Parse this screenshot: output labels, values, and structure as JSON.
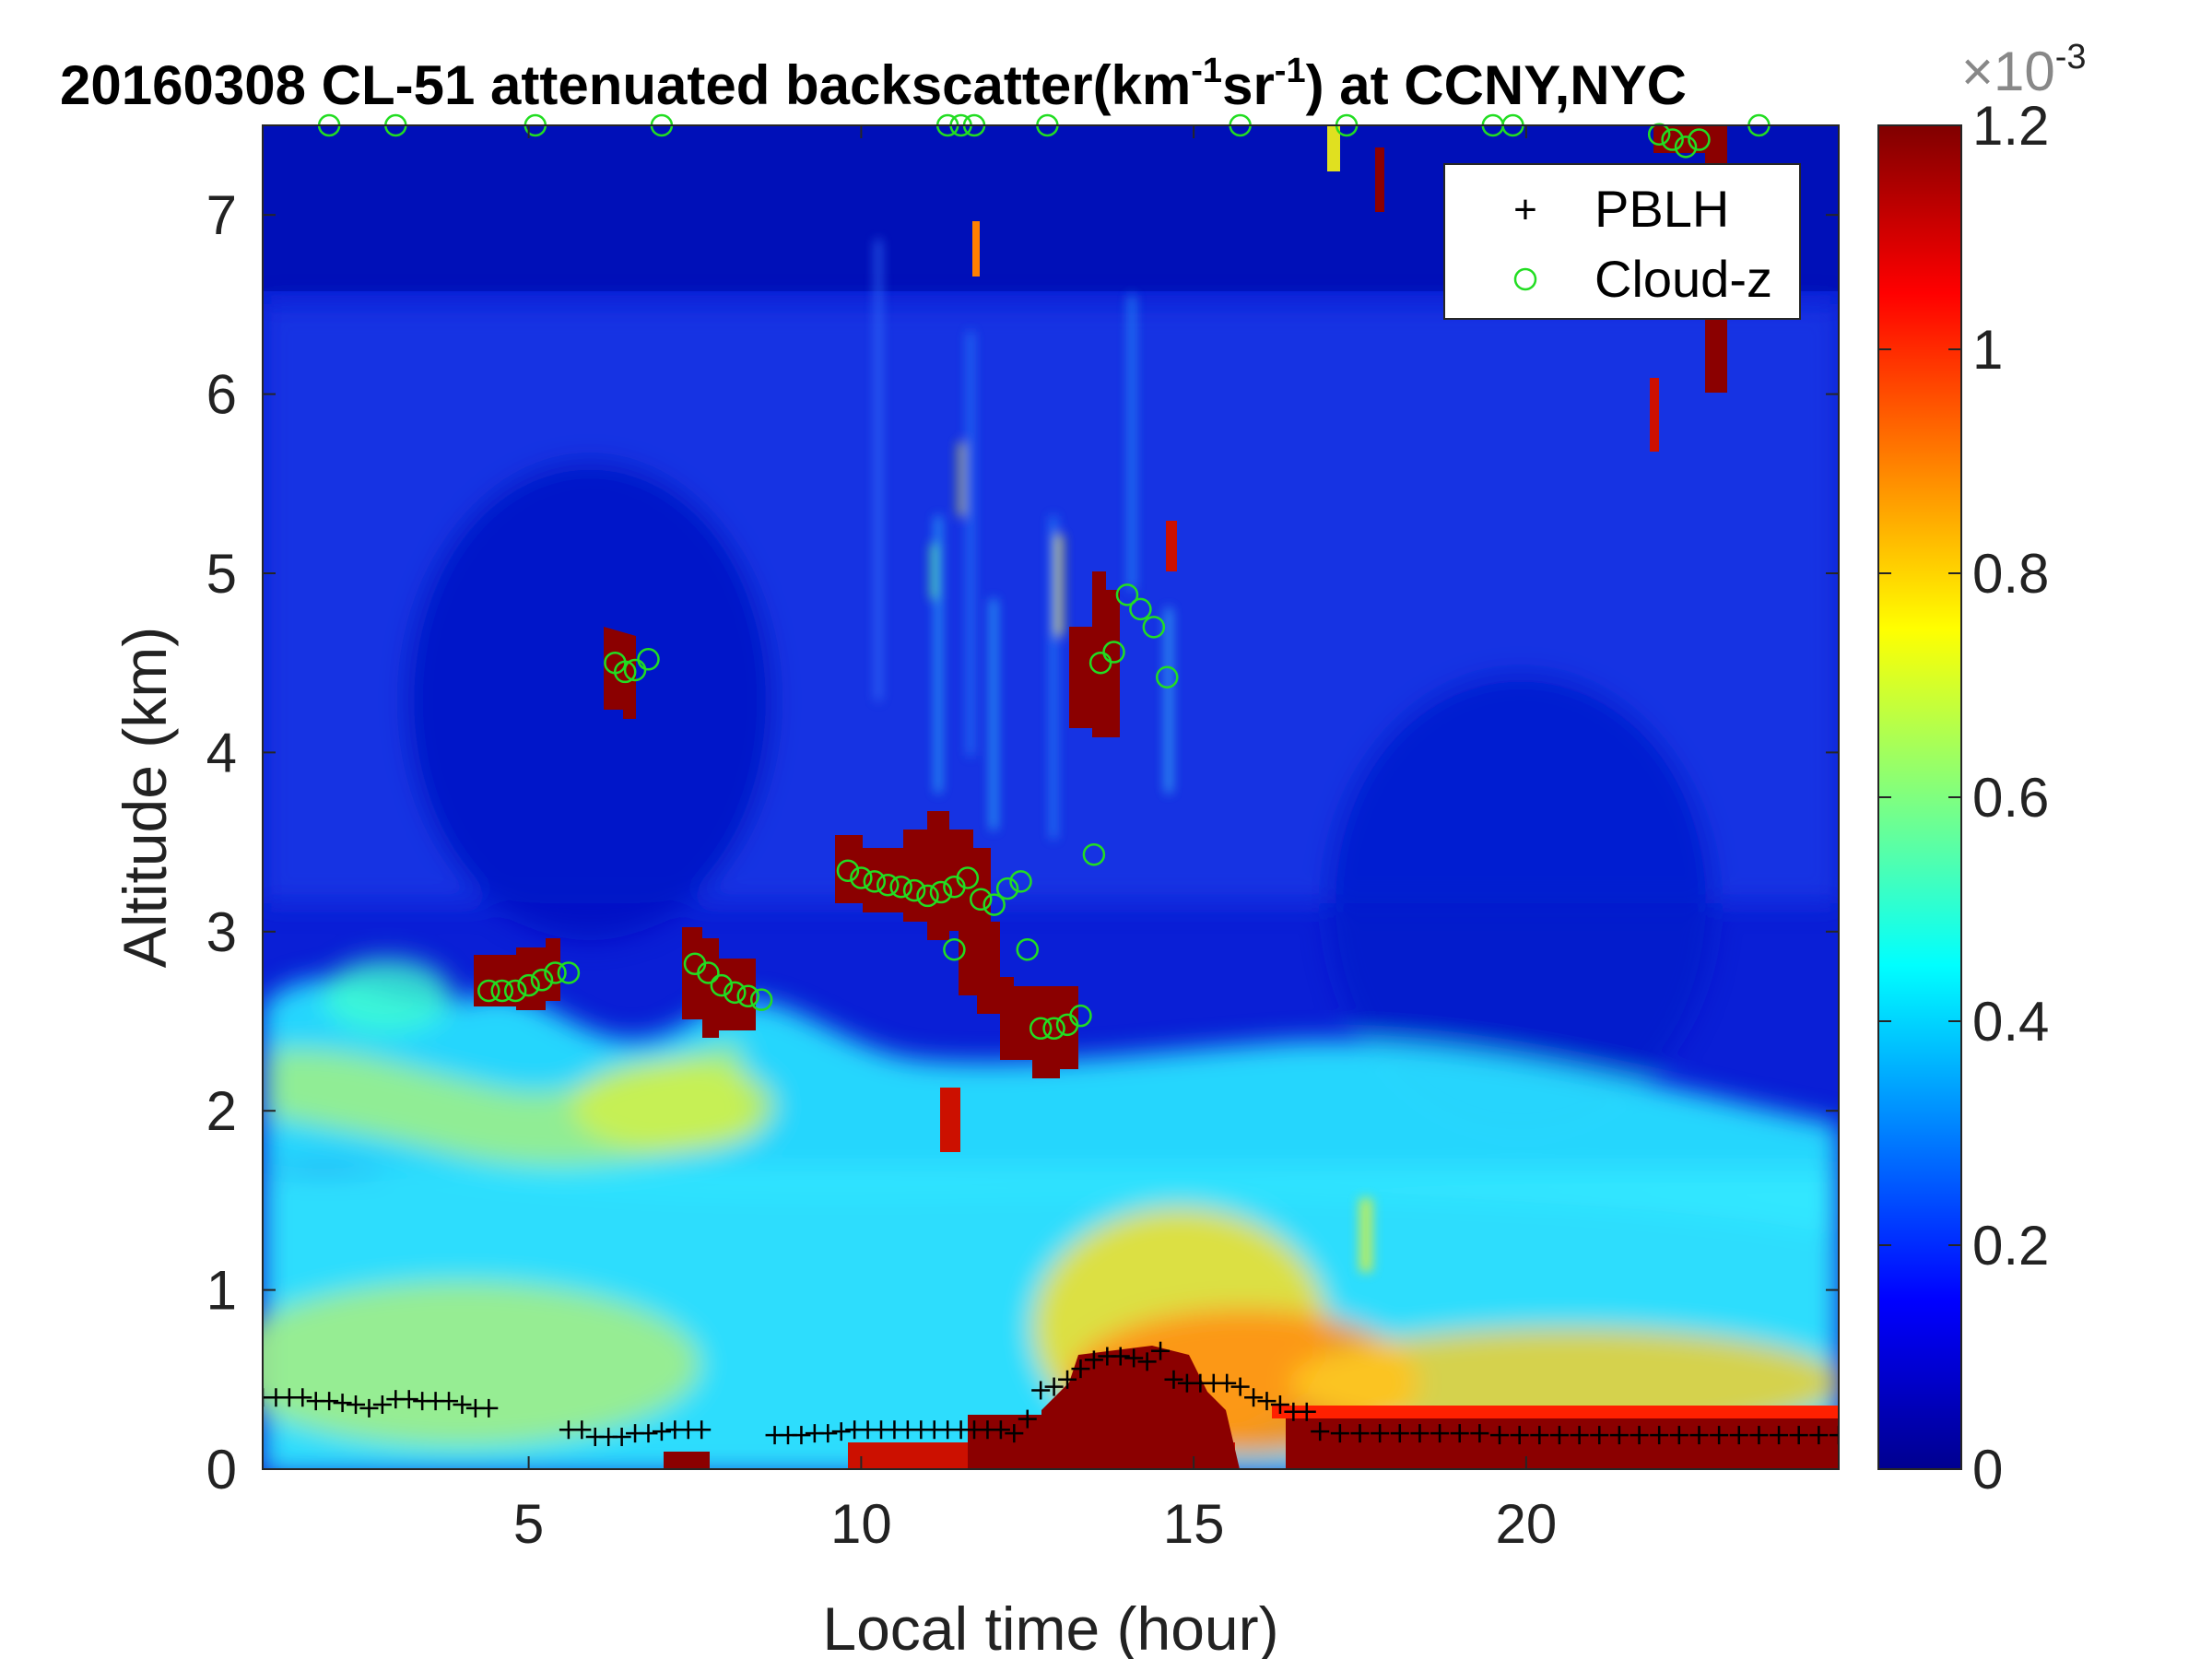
{
  "chart_data": {
    "type": "heatmap",
    "title_main": "20160308  CL-51 attenuated backscatter(km",
    "title_exp1": "-1",
    "title_mid": "sr",
    "title_exp2": "-1",
    "title_end": ") at CCNY,NYC",
    "xlabel": "Local time (hour)",
    "ylabel": "Altitude (km)",
    "xlim": [
      1,
      24.7
    ],
    "ylim": [
      0,
      7.5
    ],
    "x_ticks": [
      5,
      10,
      15,
      20
    ],
    "x_tick_labels": [
      "5",
      "10",
      "15",
      "20"
    ],
    "y_ticks": [
      0,
      1,
      2,
      3,
      4,
      5,
      6,
      7
    ],
    "y_tick_labels": [
      "0",
      "1",
      "2",
      "3",
      "4",
      "5",
      "6",
      "7"
    ],
    "colorbar": {
      "colormap": "jet",
      "range": [
        0,
        0.0012
      ],
      "ticks": [
        0,
        0.2,
        0.4,
        0.6,
        0.8,
        1,
        1.2
      ],
      "tick_labels": [
        "0",
        "0.2",
        "0.4",
        "0.6",
        "0.8",
        "1",
        "1.2"
      ],
      "multiplier_base": "×10",
      "multiplier_exp": "-3"
    },
    "legend": {
      "placement": "top-right",
      "entries": [
        {
          "marker": "+",
          "label": "PBLH",
          "color": "#000000"
        },
        {
          "marker": "o",
          "label": "Cloud-z",
          "color": "#22dd22"
        }
      ]
    },
    "series": [
      {
        "name": "PBLH",
        "marker": "+",
        "color": "#000000",
        "points": [
          [
            1.0,
            0.4
          ],
          [
            1.2,
            0.4
          ],
          [
            1.4,
            0.4
          ],
          [
            1.6,
            0.4
          ],
          [
            1.8,
            0.38
          ],
          [
            2.0,
            0.38
          ],
          [
            2.2,
            0.37
          ],
          [
            2.4,
            0.36
          ],
          [
            2.6,
            0.34
          ],
          [
            2.8,
            0.36
          ],
          [
            3.0,
            0.39
          ],
          [
            3.2,
            0.39
          ],
          [
            3.4,
            0.38
          ],
          [
            3.6,
            0.38
          ],
          [
            3.8,
            0.38
          ],
          [
            4.0,
            0.36
          ],
          [
            4.2,
            0.34
          ],
          [
            4.4,
            0.34
          ],
          [
            5.6,
            0.22
          ],
          [
            5.8,
            0.22
          ],
          [
            6.0,
            0.18
          ],
          [
            6.2,
            0.18
          ],
          [
            6.4,
            0.18
          ],
          [
            6.6,
            0.2
          ],
          [
            6.8,
            0.2
          ],
          [
            7.0,
            0.21
          ],
          [
            7.2,
            0.22
          ],
          [
            7.4,
            0.22
          ],
          [
            7.6,
            0.22
          ],
          [
            8.7,
            0.19
          ],
          [
            8.9,
            0.19
          ],
          [
            9.1,
            0.19
          ],
          [
            9.3,
            0.2
          ],
          [
            9.5,
            0.2
          ],
          [
            9.7,
            0.21
          ],
          [
            9.9,
            0.22
          ],
          [
            10.1,
            0.22
          ],
          [
            10.3,
            0.22
          ],
          [
            10.5,
            0.22
          ],
          [
            10.7,
            0.22
          ],
          [
            10.9,
            0.22
          ],
          [
            11.1,
            0.22
          ],
          [
            11.3,
            0.22
          ],
          [
            11.5,
            0.22
          ],
          [
            11.7,
            0.22
          ],
          [
            11.9,
            0.22
          ],
          [
            12.1,
            0.22
          ],
          [
            12.3,
            0.2
          ],
          [
            12.5,
            0.28
          ],
          [
            12.7,
            0.44
          ],
          [
            12.9,
            0.46
          ],
          [
            13.1,
            0.5
          ],
          [
            13.3,
            0.56
          ],
          [
            13.5,
            0.61
          ],
          [
            13.7,
            0.63
          ],
          [
            13.9,
            0.63
          ],
          [
            14.1,
            0.62
          ],
          [
            14.3,
            0.6
          ],
          [
            14.5,
            0.66
          ],
          [
            14.7,
            0.5
          ],
          [
            14.9,
            0.48
          ],
          [
            15.1,
            0.48
          ],
          [
            15.3,
            0.48
          ],
          [
            15.5,
            0.48
          ],
          [
            15.7,
            0.46
          ],
          [
            15.9,
            0.4
          ],
          [
            16.1,
            0.38
          ],
          [
            16.3,
            0.36
          ],
          [
            16.5,
            0.32
          ],
          [
            16.7,
            0.32
          ],
          [
            16.9,
            0.21
          ],
          [
            17.2,
            0.2
          ],
          [
            17.5,
            0.2
          ],
          [
            17.8,
            0.2
          ],
          [
            18.1,
            0.2
          ],
          [
            18.4,
            0.2
          ],
          [
            18.7,
            0.2
          ],
          [
            19.0,
            0.2
          ],
          [
            19.3,
            0.2
          ],
          [
            19.6,
            0.19
          ],
          [
            19.9,
            0.19
          ],
          [
            20.2,
            0.19
          ],
          [
            20.5,
            0.19
          ],
          [
            20.8,
            0.19
          ],
          [
            21.1,
            0.19
          ],
          [
            21.4,
            0.19
          ],
          [
            21.7,
            0.19
          ],
          [
            22.0,
            0.19
          ],
          [
            22.3,
            0.19
          ],
          [
            22.6,
            0.19
          ],
          [
            22.9,
            0.19
          ],
          [
            23.2,
            0.19
          ],
          [
            23.5,
            0.19
          ],
          [
            23.8,
            0.19
          ],
          [
            24.1,
            0.19
          ],
          [
            24.4,
            0.19
          ],
          [
            24.7,
            0.19
          ]
        ]
      },
      {
        "name": "Cloud-z",
        "marker": "o",
        "color": "#22dd22",
        "points": [
          [
            4.4,
            2.67
          ],
          [
            4.6,
            2.67
          ],
          [
            4.8,
            2.67
          ],
          [
            5.0,
            2.7
          ],
          [
            5.2,
            2.73
          ],
          [
            5.4,
            2.77
          ],
          [
            5.6,
            2.77
          ],
          [
            6.3,
            4.5
          ],
          [
            6.45,
            4.45
          ],
          [
            6.6,
            4.46
          ],
          [
            6.8,
            4.52
          ],
          [
            7.5,
            2.82
          ],
          [
            7.7,
            2.77
          ],
          [
            7.9,
            2.7
          ],
          [
            8.1,
            2.66
          ],
          [
            8.3,
            2.64
          ],
          [
            8.5,
            2.62
          ],
          [
            9.8,
            3.34
          ],
          [
            10.0,
            3.3
          ],
          [
            10.2,
            3.28
          ],
          [
            10.4,
            3.26
          ],
          [
            10.6,
            3.25
          ],
          [
            10.8,
            3.23
          ],
          [
            11.0,
            3.2
          ],
          [
            11.2,
            3.22
          ],
          [
            11.4,
            3.25
          ],
          [
            11.6,
            3.3
          ],
          [
            11.8,
            3.18
          ],
          [
            12.0,
            3.15
          ],
          [
            12.2,
            3.24
          ],
          [
            12.4,
            3.28
          ],
          [
            11.4,
            2.9
          ],
          [
            12.5,
            2.9
          ],
          [
            12.7,
            2.46
          ],
          [
            12.9,
            2.46
          ],
          [
            13.1,
            2.48
          ],
          [
            13.3,
            2.53
          ],
          [
            13.5,
            3.43
          ],
          [
            13.6,
            4.5
          ],
          [
            13.8,
            4.56
          ],
          [
            14.0,
            4.88
          ],
          [
            14.2,
            4.8
          ],
          [
            14.4,
            4.7
          ],
          [
            14.6,
            4.42
          ],
          [
            22.0,
            7.45
          ],
          [
            22.2,
            7.42
          ],
          [
            22.4,
            7.38
          ],
          [
            22.6,
            7.42
          ],
          [
            2.0,
            7.5
          ],
          [
            3.0,
            7.5
          ],
          [
            5.1,
            7.5
          ],
          [
            7.0,
            7.5
          ],
          [
            11.3,
            7.5
          ],
          [
            11.5,
            7.5
          ],
          [
            11.7,
            7.5
          ],
          [
            12.8,
            7.5
          ],
          [
            15.7,
            7.5
          ],
          [
            17.3,
            7.5
          ],
          [
            19.5,
            7.5
          ],
          [
            19.8,
            7.5
          ],
          [
            23.5,
            7.5
          ]
        ]
      }
    ]
  }
}
